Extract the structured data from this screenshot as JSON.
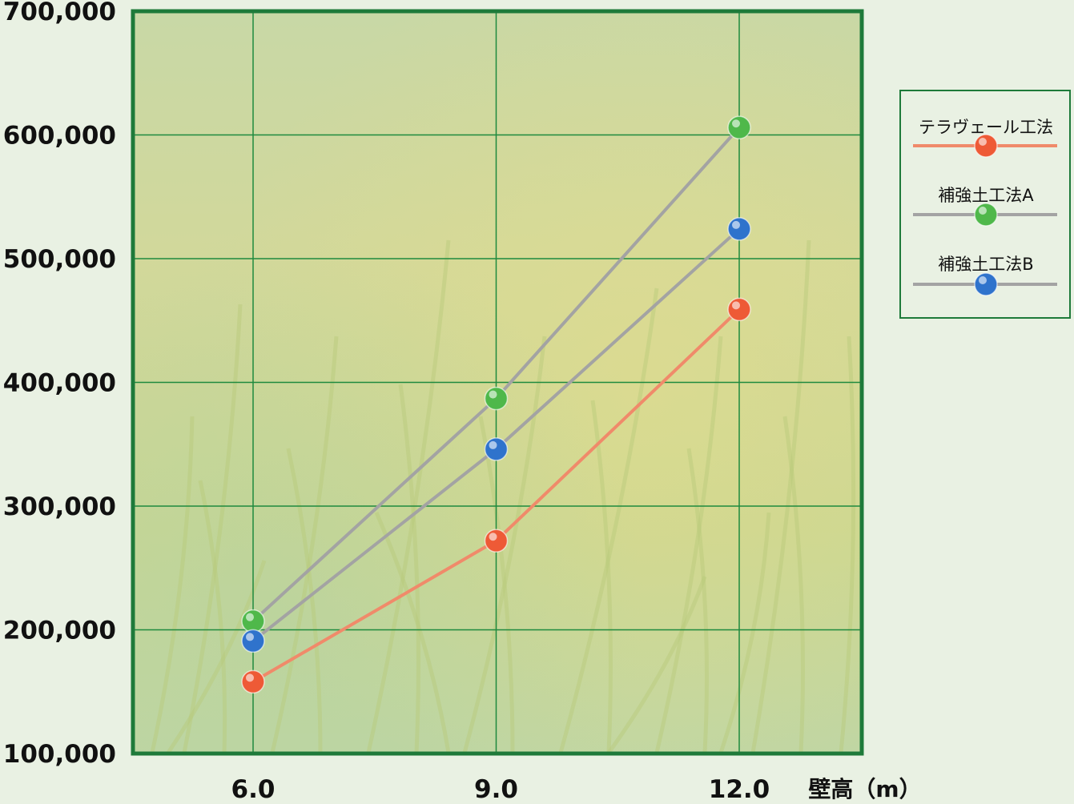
{
  "chart_data": {
    "type": "line",
    "xlabel": "壁高（m）",
    "ylabel": "",
    "x": [
      6.0,
      9.0,
      12.0
    ],
    "x_tick_labels": [
      "6.0",
      "9.0",
      "12.0"
    ],
    "xlim": [
      4.5,
      20
    ],
    "ylim": [
      100000,
      700000
    ],
    "y_ticks": [
      100000,
      200000,
      300000,
      400000,
      500000,
      600000,
      700000
    ],
    "y_tick_labels": [
      "100,000",
      "200,000",
      "300,000",
      "400,000",
      "500,000",
      "600,000",
      "700,000"
    ],
    "grid": true,
    "legend_position": "right",
    "series": [
      {
        "name": "テラヴェール工法",
        "values": [
          158000,
          272000,
          459000
        ],
        "line_color": "#f08a6a",
        "marker_color": "#ee5a36"
      },
      {
        "name": "補強土工法A",
        "values": [
          207000,
          387000,
          606000
        ],
        "line_color": "#a3a3a3",
        "marker_color": "#4fb84a"
      },
      {
        "name": "補強土工法B",
        "values": [
          191000,
          346000,
          524000
        ],
        "line_color": "#a3a3a3",
        "marker_color": "#2f73cc"
      }
    ],
    "colors": {
      "frame": "#1e7a3a",
      "grid": "#1e8a3e",
      "background": "#e9f1e3"
    }
  }
}
